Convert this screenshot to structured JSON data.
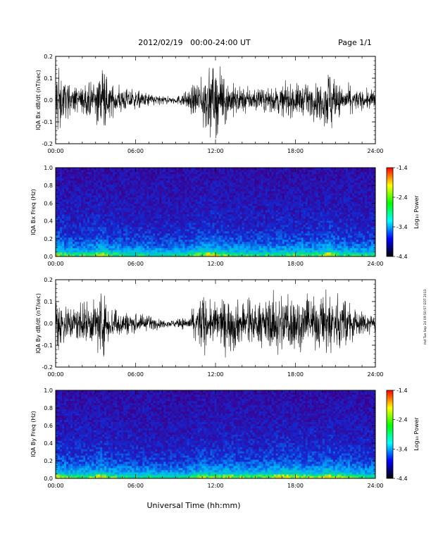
{
  "header": {
    "date_range": "2012/02/19   00:00-24:00 UT",
    "page": "Page 1/1"
  },
  "footer": {
    "xlabel": "Universal Time (hh:mm)",
    "stamp": "rnd Tue Sep 24 09:50:57 EDT 2013"
  },
  "colorbar": {
    "label": "Log₁₀ Power",
    "ticks": [
      "-1.4",
      "-2.4",
      "-3.4",
      "-4.4"
    ],
    "colors": [
      "#ff0000",
      "#ffff00",
      "#00ff00",
      "#00ffff",
      "#0000ff",
      "#000000"
    ]
  },
  "colors": {
    "trace": "#000000",
    "spectrogram_background": "#1f3cc8"
  },
  "x_ticks": [
    "00:00",
    "06:00",
    "12:00",
    "18:00",
    "24:00"
  ],
  "chart_data": [
    {
      "type": "line",
      "ylabel": "IQA Bx dB/dt (nT/sec)",
      "xlim": [
        "00:00",
        "24:00"
      ],
      "ylim": [
        -0.2,
        0.2
      ],
      "y_ticks": [
        "0.2",
        "0.1",
        "0.0",
        "-0.1",
        "-0.2"
      ],
      "envelope": {
        "x_hours": [
          0,
          0.5,
          1,
          2,
          3,
          3.3,
          4,
          5,
          6,
          7,
          8,
          9,
          10,
          10.5,
          11,
          11.5,
          12,
          12.5,
          13,
          14,
          15,
          16,
          17,
          18,
          19,
          20,
          20.5,
          21,
          22,
          23,
          24
        ],
        "amplitude": [
          0.2,
          0.12,
          0.08,
          0.07,
          0.1,
          0.2,
          0.09,
          0.07,
          0.05,
          0.04,
          0.02,
          0.02,
          0.05,
          0.1,
          0.14,
          0.17,
          0.18,
          0.13,
          0.1,
          0.07,
          0.06,
          0.06,
          0.08,
          0.09,
          0.08,
          0.1,
          0.2,
          0.09,
          0.07,
          0.05,
          0.06
        ]
      }
    },
    {
      "type": "heatmap",
      "ylabel": "IQA Bx Freq (Hz)",
      "xlim": [
        "00:00",
        "24:00"
      ],
      "ylim": [
        0.0,
        1.0
      ],
      "y_ticks": [
        "1.0",
        "0.8",
        "0.6",
        "0.4",
        "0.2",
        "0.0"
      ],
      "zlabel": "Log₁₀ Power",
      "zlim": [
        -4.4,
        -1.4
      ]
    },
    {
      "type": "line",
      "ylabel": "IQA By dB/dt (nT/sec)",
      "xlim": [
        "00:00",
        "24:00"
      ],
      "ylim": [
        -0.2,
        0.2
      ],
      "y_ticks": [
        "0.2",
        "0.1",
        "0.0",
        "-0.1",
        "-0.2"
      ],
      "envelope": {
        "x_hours": [
          0,
          0.5,
          1,
          2,
          3,
          3.3,
          4,
          5,
          6,
          7,
          8,
          9,
          10,
          10.5,
          11,
          11.5,
          12,
          12.5,
          13,
          14,
          15,
          16,
          17,
          18,
          19,
          20,
          20.5,
          21,
          22,
          23,
          24
        ],
        "amplitude": [
          0.2,
          0.12,
          0.1,
          0.1,
          0.12,
          0.2,
          0.1,
          0.07,
          0.05,
          0.04,
          0.02,
          0.02,
          0.04,
          0.08,
          0.18,
          0.1,
          0.12,
          0.12,
          0.14,
          0.12,
          0.1,
          0.13,
          0.18,
          0.15,
          0.13,
          0.14,
          0.2,
          0.15,
          0.11,
          0.06,
          0.06
        ]
      }
    },
    {
      "type": "heatmap",
      "ylabel": "IQA By Freq (Hz)",
      "xlim": [
        "00:00",
        "24:00"
      ],
      "ylim": [
        0.0,
        1.0
      ],
      "y_ticks": [
        "1.0",
        "0.8",
        "0.6",
        "0.4",
        "0.2",
        "0.0"
      ],
      "zlabel": "Log₁₀ Power",
      "zlim": [
        -4.4,
        -1.4
      ]
    }
  ]
}
